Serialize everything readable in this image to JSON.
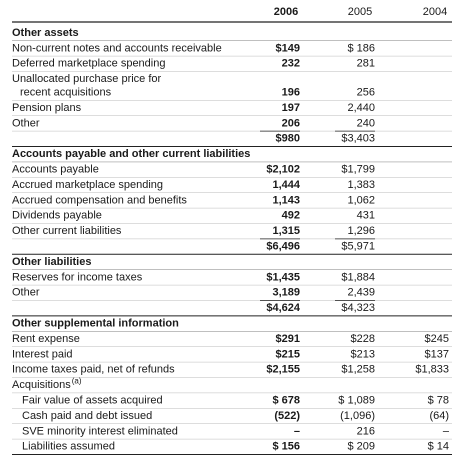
{
  "header": {
    "years": [
      "2006",
      "2005",
      "2004"
    ]
  },
  "sections": [
    {
      "title": "Other assets",
      "rows": [
        {
          "label": "Non-current notes and accounts receivable",
          "values": [
            "$149",
            "$ 186"
          ]
        },
        {
          "label": "Deferred marketplace spending",
          "values": [
            "232",
            "281"
          ]
        },
        {
          "label_lines": [
            "Unallocated purchase price for",
            "recent acquisitions"
          ],
          "values": [
            "196",
            "256"
          ]
        },
        {
          "label": "Pension plans",
          "values": [
            "197",
            "2,440"
          ]
        },
        {
          "label": "Other",
          "values": [
            "206",
            "240"
          ]
        }
      ],
      "total": [
        "$980",
        "$3,403"
      ]
    },
    {
      "title": "Accounts payable and other current liabilities",
      "rows": [
        {
          "label": "Accounts payable",
          "values": [
            "$2,102",
            "$1,799"
          ]
        },
        {
          "label": "Accrued marketplace spending",
          "values": [
            "1,444",
            "1,383"
          ]
        },
        {
          "label": "Accrued compensation and benefits",
          "values": [
            "1,143",
            "1,062"
          ]
        },
        {
          "label": "Dividends payable",
          "values": [
            "492",
            "431"
          ]
        },
        {
          "label": "Other current liabilities",
          "values": [
            "1,315",
            "1,296"
          ]
        }
      ],
      "total": [
        "$6,496",
        "$5,971"
      ]
    },
    {
      "title": "Other liabilities",
      "rows": [
        {
          "label": "Reserves for income taxes",
          "values": [
            "$1,435",
            "$1,884"
          ]
        },
        {
          "label": "Other",
          "values": [
            "3,189",
            "2,439"
          ]
        }
      ],
      "total": [
        "$4,624",
        "$4,323"
      ]
    },
    {
      "title": "Other supplemental information",
      "rows": [
        {
          "label": "Rent expense",
          "values": [
            "$291",
            "$228",
            "$245"
          ]
        },
        {
          "label": "Interest paid",
          "values": [
            "$215",
            "$213",
            "$137"
          ]
        },
        {
          "label": "Income taxes paid, net of refunds",
          "values": [
            "$2,155",
            "$1,258",
            "$1,833"
          ]
        },
        {
          "label": "Acquisitions",
          "note": "(a)"
        },
        {
          "label": "Fair value of assets acquired",
          "indent": true,
          "values": [
            "$ 678",
            "$ 1,089",
            "$ 78"
          ]
        },
        {
          "label": "Cash paid and debt issued",
          "indent": true,
          "values": [
            "(522)",
            "(1,096)",
            "(64)"
          ]
        },
        {
          "label": "SVE minority interest eliminated",
          "indent": true,
          "values": [
            "–",
            "216",
            "–"
          ]
        },
        {
          "label": "Liabilities assumed",
          "indent": true,
          "values": [
            "$ 156",
            "$ 209",
            "$ 14"
          ]
        }
      ]
    }
  ]
}
